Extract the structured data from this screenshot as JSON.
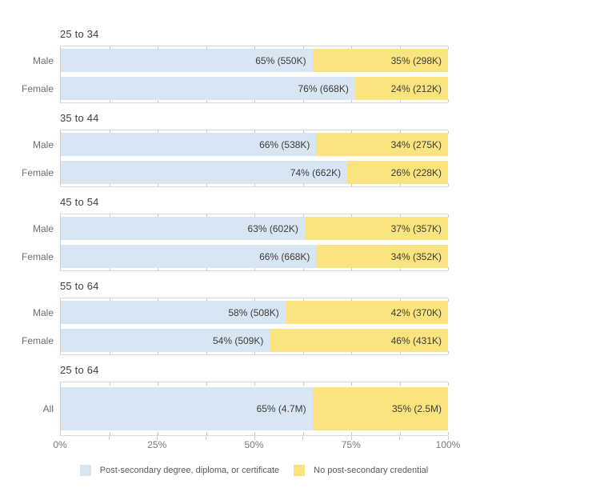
{
  "chart_data": {
    "type": "bar",
    "stacked": true,
    "orientation": "horizontal",
    "unit": "percent",
    "xlim": [
      0,
      100
    ],
    "x_tick_labels": [
      "0%",
      "25%",
      "50%",
      "75%",
      "100%"
    ],
    "minor_tick_step_pct": 12.5,
    "grid": false,
    "legend_position": "bottom-center",
    "series": [
      {
        "name": "Post-secondary degree, diploma, or certificate",
        "color": "#d8e6f3"
      },
      {
        "name": "No post-secondary credential",
        "color": "#fae47f"
      }
    ],
    "groups": [
      {
        "title": "25 to 34",
        "rows": [
          {
            "label": "Male",
            "values": [
              65,
              35
            ],
            "counts": [
              "550K",
              "298K"
            ],
            "display": [
              "65% (550K)",
              "35% (298K)"
            ]
          },
          {
            "label": "Female",
            "values": [
              76,
              24
            ],
            "counts": [
              "668K",
              "212K"
            ],
            "display": [
              "76% (668K)",
              "24% (212K)"
            ]
          }
        ]
      },
      {
        "title": "35 to 44",
        "rows": [
          {
            "label": "Male",
            "values": [
              66,
              34
            ],
            "counts": [
              "538K",
              "275K"
            ],
            "display": [
              "66% (538K)",
              "34% (275K)"
            ]
          },
          {
            "label": "Female",
            "values": [
              74,
              26
            ],
            "counts": [
              "662K",
              "228K"
            ],
            "display": [
              "74% (662K)",
              "26% (228K)"
            ]
          }
        ]
      },
      {
        "title": "45 to 54",
        "rows": [
          {
            "label": "Male",
            "values": [
              63,
              37
            ],
            "counts": [
              "602K",
              "357K"
            ],
            "display": [
              "63% (602K)",
              "37% (357K)"
            ]
          },
          {
            "label": "Female",
            "values": [
              66,
              34
            ],
            "counts": [
              "668K",
              "352K"
            ],
            "display": [
              "66% (668K)",
              "34% (352K)"
            ]
          }
        ]
      },
      {
        "title": "55 to 64",
        "rows": [
          {
            "label": "Male",
            "values": [
              58,
              42
            ],
            "counts": [
              "508K",
              "370K"
            ],
            "display": [
              "58% (508K)",
              "42% (370K)"
            ]
          },
          {
            "label": "Female",
            "values": [
              54,
              46
            ],
            "counts": [
              "509K",
              "431K"
            ],
            "display": [
              "54% (509K)",
              "46% (431K)"
            ]
          }
        ]
      },
      {
        "title": "25 to 64",
        "tall": true,
        "rows": [
          {
            "label": "All",
            "values": [
              65,
              35
            ],
            "counts": [
              "4.7M",
              "2.5M"
            ],
            "display": [
              "65% (4.7M)",
              "35% (2.5M)"
            ]
          }
        ]
      }
    ]
  }
}
